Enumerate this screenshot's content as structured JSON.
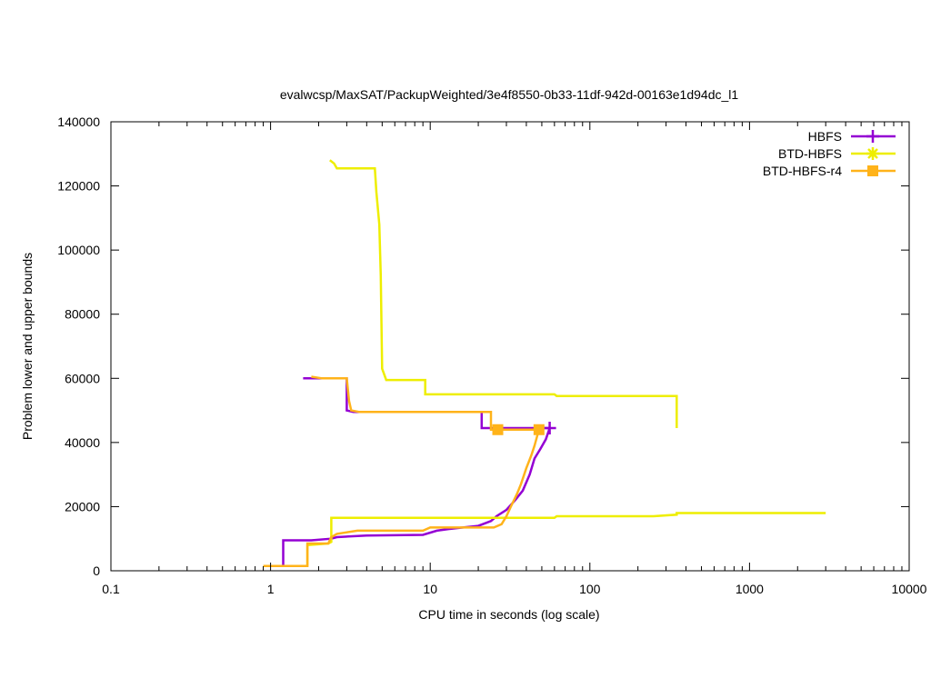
{
  "chart_data": {
    "type": "line",
    "title": "evalwcsp/MaxSAT/PackupWeighted/3e4f8550-0b33-11df-942d-00163e1d94dc_l1",
    "xlabel": "CPU time in seconds (log scale)",
    "ylabel": "Problem lower and upper bounds",
    "x_scale": "log",
    "xlim": [
      0.1,
      10000
    ],
    "ylim": [
      0,
      140000
    ],
    "x_ticks": [
      {
        "value": 0.1,
        "label": "0.1"
      },
      {
        "value": 1,
        "label": "1"
      },
      {
        "value": 10,
        "label": "10"
      },
      {
        "value": 100,
        "label": "100"
      },
      {
        "value": 1000,
        "label": "1000"
      },
      {
        "value": 10000,
        "label": "10000"
      }
    ],
    "y_ticks": [
      {
        "value": 0,
        "label": "0"
      },
      {
        "value": 20000,
        "label": "20000"
      },
      {
        "value": 40000,
        "label": "40000"
      },
      {
        "value": 60000,
        "label": "60000"
      },
      {
        "value": 80000,
        "label": "80000"
      },
      {
        "value": 100000,
        "label": "100000"
      },
      {
        "value": 120000,
        "label": "120000"
      },
      {
        "value": 140000,
        "label": "140000"
      }
    ],
    "grid": false,
    "legend_position": "top-right",
    "series": [
      {
        "name": "HBFS",
        "color": "#9400d3",
        "marker": "plus",
        "upper": [
          [
            1.6,
            60000
          ],
          [
            3.0,
            60000
          ],
          [
            3.0,
            50000
          ],
          [
            3.3,
            49500
          ],
          [
            21,
            49500
          ],
          [
            21,
            44500
          ],
          [
            56,
            44500
          ]
        ],
        "lower": [
          [
            1.0,
            1500
          ],
          [
            1.2,
            1500
          ],
          [
            1.2,
            9500
          ],
          [
            1.8,
            9500
          ],
          [
            2.4,
            10000
          ],
          [
            2.6,
            10500
          ],
          [
            4.0,
            11000
          ],
          [
            9.0,
            11200
          ],
          [
            11,
            12500
          ],
          [
            13,
            13000
          ],
          [
            20,
            14000
          ],
          [
            24,
            15500
          ],
          [
            26,
            17000
          ],
          [
            30,
            19000
          ],
          [
            34,
            22000
          ],
          [
            38,
            25000
          ],
          [
            42,
            30000
          ],
          [
            45,
            35000
          ],
          [
            49,
            38000
          ],
          [
            53,
            41000
          ],
          [
            56,
            44500
          ]
        ]
      },
      {
        "name": "BTD-HBFS",
        "color": "#eeee00",
        "marker": "star",
        "upper": [
          [
            2.35,
            128000
          ],
          [
            2.5,
            127000
          ],
          [
            2.6,
            125500
          ],
          [
            4.5,
            125500
          ],
          [
            4.6,
            118000
          ],
          [
            4.8,
            108000
          ],
          [
            4.9,
            92000
          ],
          [
            5.0,
            63000
          ],
          [
            5.3,
            59500
          ],
          [
            9.3,
            59500
          ],
          [
            9.3,
            55000
          ],
          [
            60,
            55000
          ],
          [
            62,
            54500
          ],
          [
            350,
            54500
          ],
          [
            350,
            44500
          ]
        ],
        "lower": [
          [
            1.7,
            1500
          ],
          [
            1.7,
            8000
          ],
          [
            2.3,
            8500
          ],
          [
            2.4,
            9000
          ],
          [
            2.4,
            16500
          ],
          [
            60,
            16500
          ],
          [
            62,
            17000
          ],
          [
            250,
            17000
          ],
          [
            350,
            17500
          ],
          [
            350,
            18000
          ],
          [
            3000,
            18000
          ]
        ]
      },
      {
        "name": "BTD-HBFS-r4",
        "color": "#ffb31a",
        "marker": "square",
        "upper": [
          [
            1.8,
            60500
          ],
          [
            2.1,
            60000
          ],
          [
            3.0,
            60000
          ],
          [
            3.1,
            53000
          ],
          [
            3.2,
            50000
          ],
          [
            3.6,
            49500
          ],
          [
            24,
            49500
          ],
          [
            24,
            44000
          ],
          [
            48,
            44000
          ]
        ],
        "lower": [
          [
            0.9,
            1500
          ],
          [
            1.7,
            1500
          ],
          [
            1.7,
            8500
          ],
          [
            2.3,
            8500
          ],
          [
            2.4,
            10500
          ],
          [
            2.6,
            11500
          ],
          [
            3.5,
            12500
          ],
          [
            9.0,
            12500
          ],
          [
            10,
            13500
          ],
          [
            25,
            13500
          ],
          [
            28,
            14500
          ],
          [
            30,
            17000
          ],
          [
            32,
            20000
          ],
          [
            35,
            24000
          ],
          [
            37,
            27000
          ],
          [
            40,
            32000
          ],
          [
            43,
            36000
          ],
          [
            45,
            39000
          ],
          [
            48,
            44000
          ]
        ]
      }
    ],
    "markers": [
      {
        "series": 0,
        "x": 56,
        "y": 44500
      },
      {
        "series": 2,
        "x": 26.5,
        "y": 44000
      },
      {
        "series": 2,
        "x": 48,
        "y": 44000
      }
    ]
  }
}
